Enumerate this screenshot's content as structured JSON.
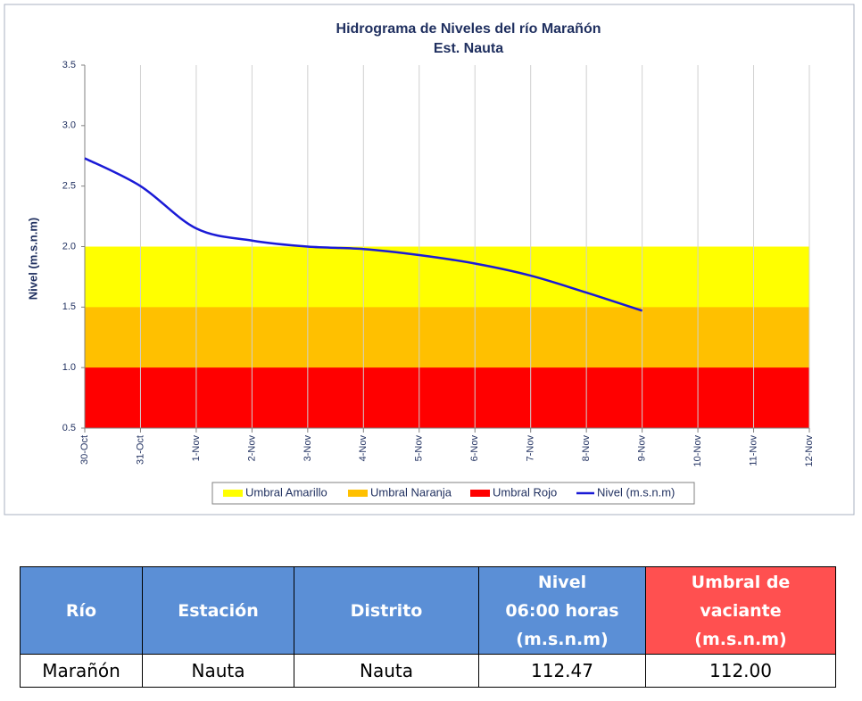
{
  "chart_data": {
    "type": "line",
    "title": "Hidrograma de Niveles del río Marañón",
    "subtitle": "Est. Nauta",
    "y_label": "Nivel (m.s.n.m)",
    "categories": [
      "30-Oct",
      "31-Oct",
      "1-Nov",
      "2-Nov",
      "3-Nov",
      "4-Nov",
      "5-Nov",
      "6-Nov",
      "7-Nov",
      "8-Nov",
      "9-Nov",
      "10-Nov",
      "11-Nov",
      "12-Nov"
    ],
    "series": [
      {
        "name": "Umbral Amarillo",
        "kind": "area",
        "color": "#ffff00",
        "values": [
          2.0,
          2.0,
          2.0,
          2.0,
          2.0,
          2.0,
          2.0,
          2.0,
          2.0,
          2.0,
          2.0,
          2.0,
          2.0,
          2.0
        ]
      },
      {
        "name": "Umbral Naranja",
        "kind": "area",
        "color": "#ffc000",
        "values": [
          1.5,
          1.5,
          1.5,
          1.5,
          1.5,
          1.5,
          1.5,
          1.5,
          1.5,
          1.5,
          1.5,
          1.5,
          1.5,
          1.5
        ]
      },
      {
        "name": "Umbral Rojo",
        "kind": "area",
        "color": "#ff0000",
        "values": [
          1.0,
          1.0,
          1.0,
          1.0,
          1.0,
          1.0,
          1.0,
          1.0,
          1.0,
          1.0,
          1.0,
          1.0,
          1.0,
          1.0
        ]
      },
      {
        "name": "Nivel (m.s.n.m)",
        "kind": "line",
        "color": "#1a1ad6",
        "values": [
          2.73,
          2.5,
          2.15,
          2.05,
          2.0,
          1.98,
          1.93,
          1.86,
          1.76,
          1.62,
          1.47,
          null,
          null,
          null
        ]
      }
    ],
    "ylim": [
      0.5,
      3.5
    ],
    "yticks": [
      0.5,
      {
        "value": 1,
        "label": "1.0"
      },
      1.5,
      {
        "value": 2,
        "label": "2.0"
      },
      2.5,
      {
        "value": 3,
        "label": "3.0"
      },
      3.5
    ],
    "grid": "x",
    "legend": "bottom"
  },
  "table": {
    "header": [
      "Río",
      "Estación",
      "Distrito",
      "Nivel\n06:00 horas\n(m.s.n.m)",
      "Umbral de\nvaciante\n(m.s.n.m)"
    ],
    "rows": [
      [
        "Marañón",
        "Nauta",
        "Nauta",
        "112.47",
        "112.00"
      ]
    ]
  }
}
